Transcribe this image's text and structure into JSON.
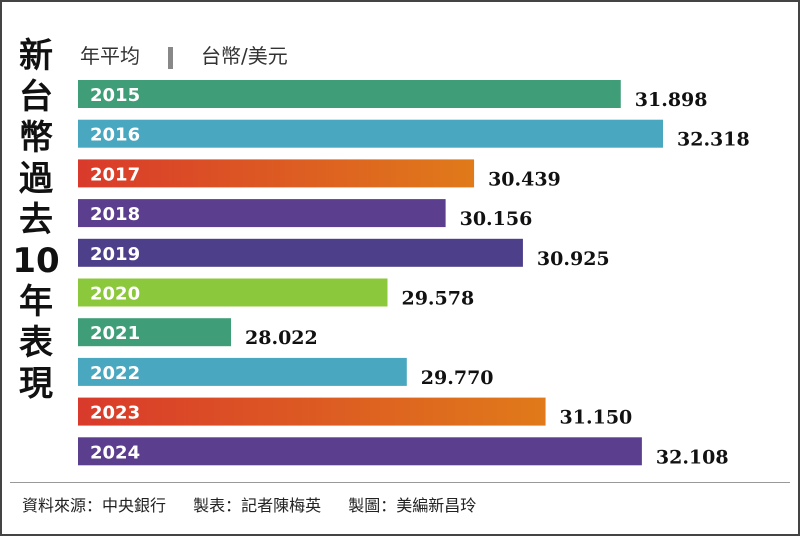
{
  "title": "新台幣過去10年表現",
  "header": {
    "measure": "年平均",
    "unit": "台幣/美元"
  },
  "footer": {
    "source": "資料來源：中央銀行",
    "maker": "製表：記者陳梅英",
    "art": "製圖：美編新昌玲"
  },
  "chart_data": {
    "type": "bar",
    "orientation": "horizontal",
    "categories": [
      "2015",
      "2016",
      "2017",
      "2018",
      "2019",
      "2020",
      "2021",
      "2022",
      "2023",
      "2024"
    ],
    "values": [
      31.898,
      32.318,
      30.439,
      30.156,
      30.925,
      29.578,
      28.022,
      29.77,
      31.15,
      32.108
    ],
    "labels": [
      "31.898",
      "32.318",
      "30.439",
      "30.156",
      "30.925",
      "29.578",
      "28.022",
      "29.770",
      "31.150",
      "32.108"
    ],
    "ylabel": "台幣/美元",
    "colors": [
      "#3f9e78",
      "#4aa7c0",
      "#e07a1a",
      "#5b3e8e",
      "#4e3f8a",
      "#8cc83c",
      "#3f9e78",
      "#4aa7c0",
      "#e07a1a",
      "#5b3e8e"
    ],
    "grid": false
  }
}
